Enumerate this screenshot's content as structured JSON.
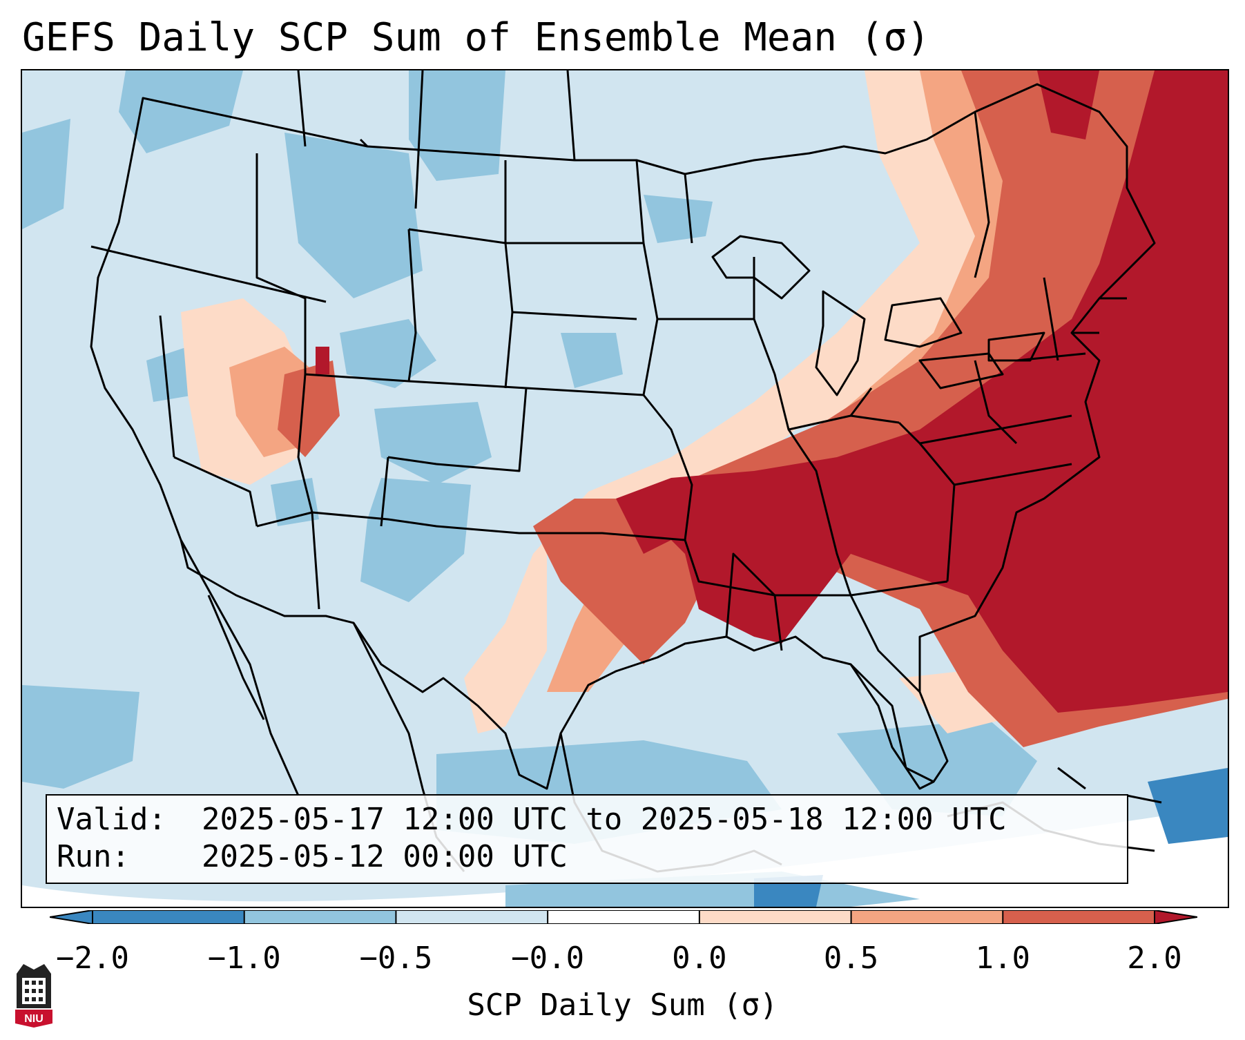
{
  "title": "GEFS Daily SCP Sum of Ensemble Mean (σ)",
  "info": {
    "valid_key": "Valid:",
    "valid_value": "2025-05-17 12:00 UTC to 2025-05-18 12:00 UTC",
    "run_key": "Run:",
    "run_value": "2025-05-12 00:00 UTC"
  },
  "colorbar": {
    "label": "SCP Daily Sum (σ)",
    "ticks": [
      "−2.0",
      "−1.0",
      "−0.5",
      "−0.0",
      "0.0",
      "0.5",
      "1.0",
      "2.0"
    ],
    "bins": [
      {
        "range": "< -2.0",
        "color": "#3a87c0"
      },
      {
        "range": "-2.0 to -1.0",
        "color": "#3a87c0"
      },
      {
        "range": "-1.0 to -0.5",
        "color": "#92c5de"
      },
      {
        "range": "-0.5 to -0.0",
        "color": "#d1e5f0"
      },
      {
        "range": "-0.0 to 0.0",
        "color": "#ffffff"
      },
      {
        "range": "0.0 to 0.5",
        "color": "#fddbc7"
      },
      {
        "range": "0.5 to 1.0",
        "color": "#f4a582"
      },
      {
        "range": "1.0 to 2.0",
        "color": "#d6604d"
      },
      {
        "range": "> 2.0",
        "color": "#b2182b"
      }
    ]
  },
  "logo_text": "NIU",
  "map": {
    "region": "Contiguous United States",
    "field": "SCP daily sum standardized anomaly",
    "high_anomaly_area": "Southeast, Tennessee Valley, Mid-Atlantic and Northeast",
    "colors": {
      "ocean_light": "#d1e5f0",
      "land_blue": "#92c5de",
      "deep_blue": "#3a87c0",
      "salmon_light": "#fddbc7",
      "salmon": "#f4a582",
      "red_orange": "#d6604d",
      "dark_red": "#b2182b",
      "border": "#000000"
    }
  }
}
